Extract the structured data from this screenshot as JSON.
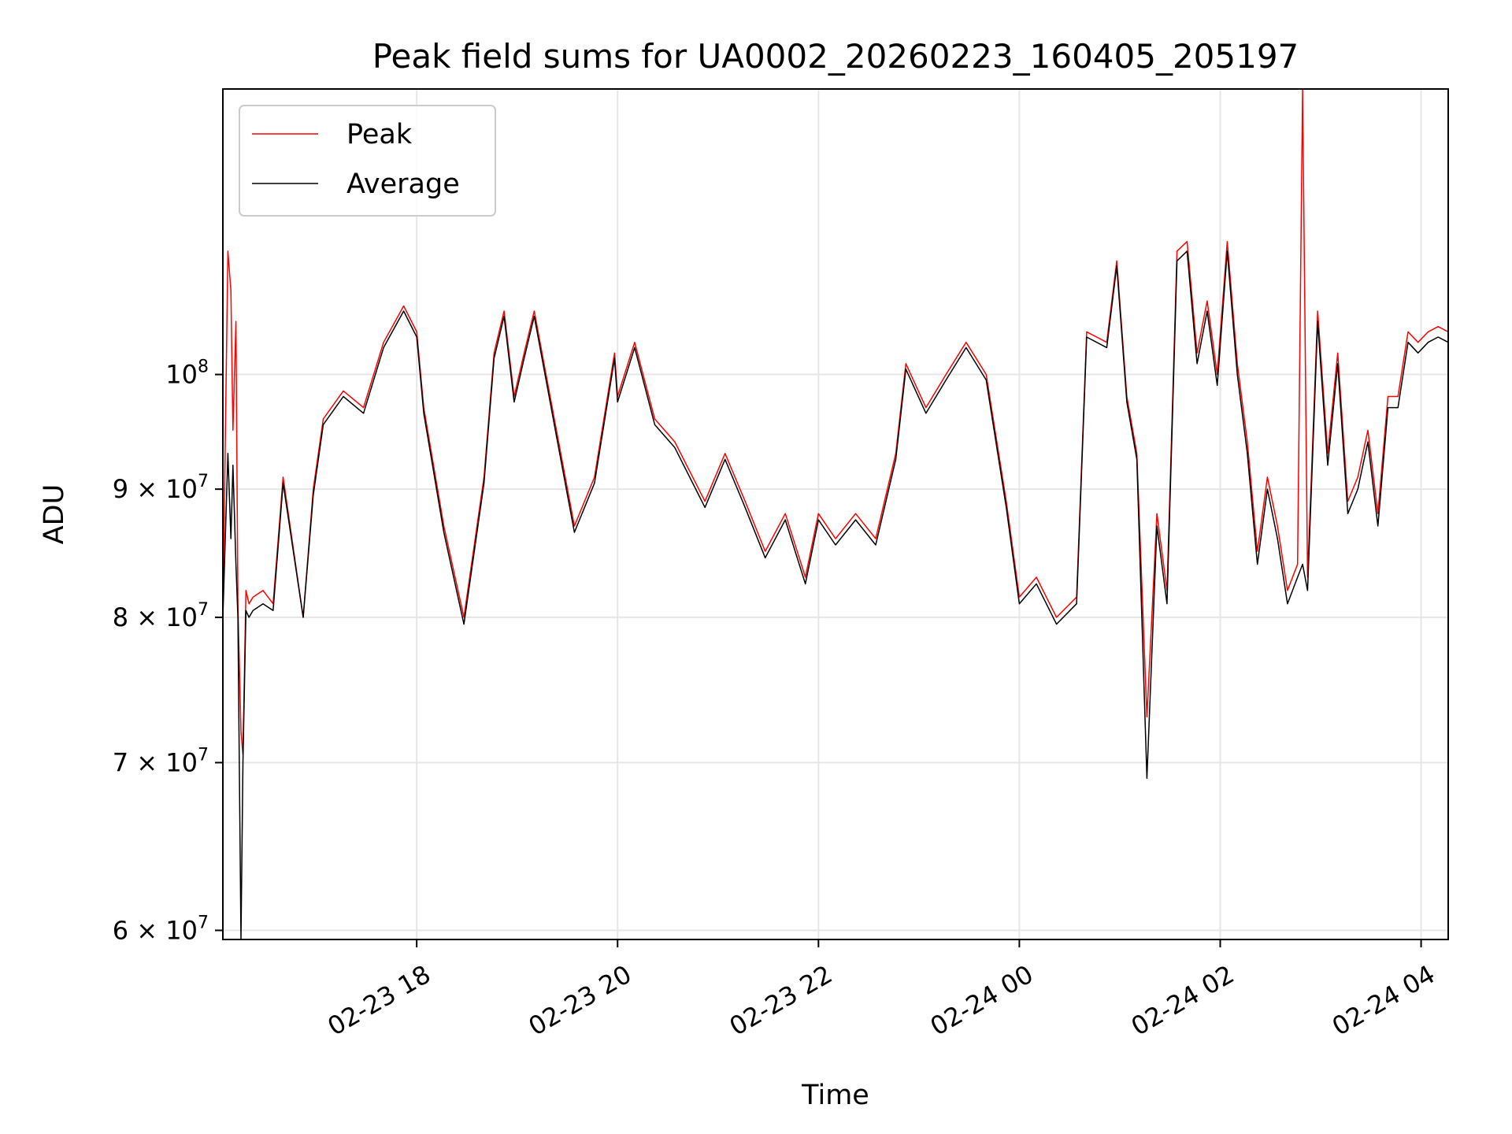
{
  "chart_data": {
    "type": "line",
    "title": "Peak field sums for UA0002_20260223_160405_205197",
    "xlabel": "Time",
    "ylabel": "ADU",
    "y_scale": "log",
    "ylim": [
      59500000,
      130000000
    ],
    "xlim_hours": [
      0.0,
      12.2
    ],
    "grid": true,
    "legend_position": "top-left",
    "x_ticks": [
      {
        "hour": 1.93,
        "label": "02-23 18"
      },
      {
        "hour": 3.93,
        "label": "02-23 20"
      },
      {
        "hour": 5.93,
        "label": "02-23 22"
      },
      {
        "hour": 7.93,
        "label": "02-24 00"
      },
      {
        "hour": 9.93,
        "label": "02-24 02"
      },
      {
        "hour": 11.93,
        "label": "02-24 04"
      }
    ],
    "y_ticks": [
      {
        "value": 60000000,
        "label_base": "6 × 10",
        "label_exp": "7"
      },
      {
        "value": 70000000,
        "label_base": "7 × 10",
        "label_exp": "7"
      },
      {
        "value": 80000000,
        "label_base": "8 × 10",
        "label_exp": "7"
      },
      {
        "value": 90000000,
        "label_base": "9 × 10",
        "label_exp": "7"
      },
      {
        "value": 100000000,
        "label_base": "10",
        "label_exp": "8"
      }
    ],
    "series": [
      {
        "name": "Peak",
        "color": "#ff0000",
        "x_hours": [
          0.0,
          0.05,
          0.08,
          0.1,
          0.13,
          0.15,
          0.18,
          0.2,
          0.23,
          0.26,
          0.3,
          0.4,
          0.5,
          0.6,
          0.8,
          0.9,
          1.0,
          1.2,
          1.4,
          1.6,
          1.8,
          1.93,
          2.0,
          2.2,
          2.4,
          2.6,
          2.7,
          2.8,
          2.9,
          3.0,
          3.1,
          3.3,
          3.5,
          3.7,
          3.9,
          3.93,
          4.1,
          4.3,
          4.5,
          4.8,
          5.0,
          5.2,
          5.4,
          5.6,
          5.8,
          5.93,
          6.1,
          6.3,
          6.5,
          6.7,
          6.8,
          7.0,
          7.2,
          7.4,
          7.6,
          7.8,
          7.93,
          8.1,
          8.3,
          8.5,
          8.6,
          8.8,
          8.9,
          9.0,
          9.1,
          9.2,
          9.3,
          9.4,
          9.5,
          9.6,
          9.7,
          9.8,
          9.9,
          10.0,
          10.1,
          10.2,
          10.3,
          10.4,
          10.5,
          10.6,
          10.7,
          10.75,
          10.8,
          10.9,
          11.0,
          11.1,
          11.2,
          11.3,
          11.4,
          11.5,
          11.6,
          11.7,
          11.8,
          11.9,
          12.0,
          12.1,
          12.2
        ],
        "values": [
          80000000,
          112000000,
          108000000,
          95000000,
          105000000,
          81000000,
          72000000,
          70500000,
          82000000,
          81000000,
          81500000,
          82000000,
          81000000,
          91000000,
          80000000,
          90000000,
          96000000,
          98500000,
          97000000,
          103000000,
          106500000,
          104000000,
          97000000,
          87000000,
          80000000,
          91000000,
          102000000,
          106000000,
          98000000,
          102000000,
          106000000,
          96000000,
          87000000,
          91000000,
          102000000,
          98000000,
          103000000,
          96000000,
          94000000,
          89000000,
          93000000,
          89000000,
          85000000,
          88000000,
          83000000,
          88000000,
          86000000,
          88000000,
          86000000,
          93000000,
          101000000,
          97000000,
          100000000,
          103000000,
          100000000,
          89000000,
          81500000,
          83000000,
          80000000,
          81500000,
          104000000,
          103000000,
          111000000,
          98000000,
          93000000,
          73000000,
          88000000,
          82000000,
          112000000,
          113000000,
          102000000,
          107000000,
          100000000,
          113000000,
          101000000,
          94000000,
          85000000,
          91000000,
          87000000,
          82000000,
          84000000,
          130000000,
          83000000,
          106000000,
          93000000,
          102000000,
          89000000,
          91000000,
          95000000,
          88000000,
          98000000,
          98000000,
          104000000,
          103000000,
          104000000,
          104500000,
          104000000
        ]
      },
      {
        "name": "Average",
        "color": "#000000",
        "x_hours": [
          0.0,
          0.05,
          0.08,
          0.1,
          0.13,
          0.15,
          0.18,
          0.2,
          0.23,
          0.26,
          0.3,
          0.4,
          0.5,
          0.6,
          0.8,
          0.9,
          1.0,
          1.2,
          1.4,
          1.6,
          1.8,
          1.93,
          2.0,
          2.2,
          2.4,
          2.6,
          2.7,
          2.8,
          2.9,
          3.0,
          3.1,
          3.3,
          3.5,
          3.7,
          3.9,
          3.93,
          4.1,
          4.3,
          4.5,
          4.8,
          5.0,
          5.2,
          5.4,
          5.6,
          5.8,
          5.93,
          6.1,
          6.3,
          6.5,
          6.7,
          6.8,
          7.0,
          7.2,
          7.4,
          7.6,
          7.8,
          7.93,
          8.1,
          8.3,
          8.5,
          8.6,
          8.8,
          8.9,
          9.0,
          9.1,
          9.2,
          9.3,
          9.4,
          9.5,
          9.6,
          9.7,
          9.8,
          9.9,
          10.0,
          10.1,
          10.2,
          10.3,
          10.4,
          10.5,
          10.6,
          10.7,
          10.75,
          10.8,
          10.9,
          11.0,
          11.1,
          11.2,
          11.3,
          11.4,
          11.5,
          11.6,
          11.7,
          11.8,
          11.9,
          12.0,
          12.1,
          12.2
        ],
        "values": [
          80000000,
          93000000,
          86000000,
          92000000,
          84000000,
          80000000,
          59500000,
          70000000,
          80500000,
          80000000,
          80500000,
          81000000,
          80500000,
          90500000,
          80000000,
          89500000,
          95500000,
          98000000,
          96500000,
          102500000,
          106000000,
          103500000,
          96500000,
          86500000,
          79500000,
          90500000,
          101500000,
          105500000,
          97500000,
          101500000,
          105500000,
          95500000,
          86500000,
          90500000,
          101500000,
          97500000,
          102500000,
          95500000,
          93500000,
          88500000,
          92500000,
          88500000,
          84500000,
          87500000,
          82500000,
          87500000,
          85500000,
          87500000,
          85500000,
          92500000,
          100500000,
          96500000,
          99500000,
          102500000,
          99500000,
          88500000,
          81000000,
          82500000,
          79500000,
          81000000,
          103500000,
          102500000,
          110500000,
          97500000,
          92500000,
          69000000,
          87000000,
          81000000,
          111000000,
          112000000,
          101000000,
          106000000,
          99000000,
          112000000,
          100000000,
          93000000,
          84000000,
          90000000,
          86000000,
          81000000,
          83000000,
          84000000,
          82000000,
          105000000,
          92000000,
          101000000,
          88000000,
          90000000,
          94000000,
          87000000,
          97000000,
          97000000,
          103000000,
          102000000,
          103000000,
          103500000,
          103000000
        ]
      }
    ]
  }
}
